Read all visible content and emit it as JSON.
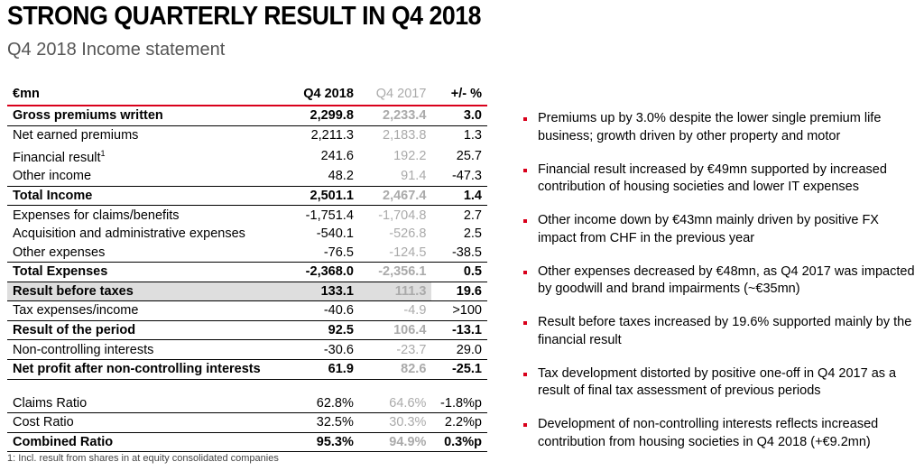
{
  "title": "STRONG QUARTERLY RESULT IN Q4 2018",
  "subtitle": "Q4 2018 Income statement",
  "table": {
    "headers": {
      "label": "€mn",
      "q4_2018": "Q4 2018",
      "q4_2017": "Q4 2017",
      "change": "+/- %"
    },
    "rows": [
      {
        "label": "Gross premiums written",
        "q4_2018": "2,299.8",
        "q4_2017": "2,233.4",
        "change": "3.0"
      },
      {
        "label": "Net earned premiums",
        "q4_2018": "2,211.3",
        "q4_2017": "2,183.8",
        "change": "1.3"
      },
      {
        "label": "Financial result",
        "sup": "1",
        "q4_2018": "241.6",
        "q4_2017": "192.2",
        "change": "25.7"
      },
      {
        "label": "Other income",
        "q4_2018": "48.2",
        "q4_2017": "91.4",
        "change": "-47.3"
      },
      {
        "label": "Total Income",
        "q4_2018": "2,501.1",
        "q4_2017": "2,467.4",
        "change": "1.4"
      },
      {
        "label": "Expenses for claims/benefits",
        "q4_2018": "-1,751.4",
        "q4_2017": "-1,704.8",
        "change": "2.7"
      },
      {
        "label": "Acquisition and administrative expenses",
        "q4_2018": "-540.1",
        "q4_2017": "-526.8",
        "change": "2.5"
      },
      {
        "label": "Other expenses",
        "q4_2018": "-76.5",
        "q4_2017": "-124.5",
        "change": "-38.5"
      },
      {
        "label": "Total Expenses",
        "q4_2018": "-2,368.0",
        "q4_2017": "-2,356.1",
        "change": "0.5"
      },
      {
        "label": "Result before taxes",
        "q4_2018": "133.1",
        "q4_2017": "111.3",
        "change": "19.6"
      },
      {
        "label": "Tax expenses/income",
        "q4_2018": "-40.6",
        "q4_2017": "-4.9",
        "change": ">100"
      },
      {
        "label": "Result of the period",
        "q4_2018": "92.5",
        "q4_2017": "106.4",
        "change": "-13.1"
      },
      {
        "label": "Non-controlling interests",
        "q4_2018": "-30.6",
        "q4_2017": "-23.7",
        "change": "29.0"
      },
      {
        "label": "Net profit after non-controlling interests",
        "q4_2018": "61.9",
        "q4_2017": "82.6",
        "change": "-25.1"
      }
    ],
    "ratios": [
      {
        "label": "Claims Ratio",
        "q4_2018": "62.8%",
        "q4_2017": "64.6%",
        "change": "-1.8%p"
      },
      {
        "label": "Cost Ratio",
        "q4_2018": "32.5%",
        "q4_2017": "30.3%",
        "change": "2.2%p"
      },
      {
        "label": "Combined Ratio",
        "q4_2018": "95.3%",
        "q4_2017": "94.9%",
        "change": "0.3%p"
      }
    ]
  },
  "footnote": "1: Incl. result from shares in at equity consolidated companies",
  "bullets": [
    "Premiums up by 3.0% despite the lower single premium life business; growth driven by other property and motor",
    "Financial result increased by €49mn supported by increased contribution of housing societies and lower IT expenses",
    "Other income down by €43mn mainly driven by positive FX impact from CHF in the previous year",
    "Other expenses decreased by €48mn, as Q4 2017 was impacted by goodwill and brand impairments (~€35mn)",
    "Result before taxes increased by 19.6% supported mainly by the financial result",
    "Tax development distorted by positive one-off in Q4 2017 as a result of final tax assessment of previous periods",
    "Development of non-controlling interests reflects increased contribution from housing societies in Q4 2018 (+€9.2mn)"
  ],
  "colors": {
    "accent": "#d9001b",
    "prior_year_text": "#aaaaaa",
    "shade": "#dedede"
  }
}
